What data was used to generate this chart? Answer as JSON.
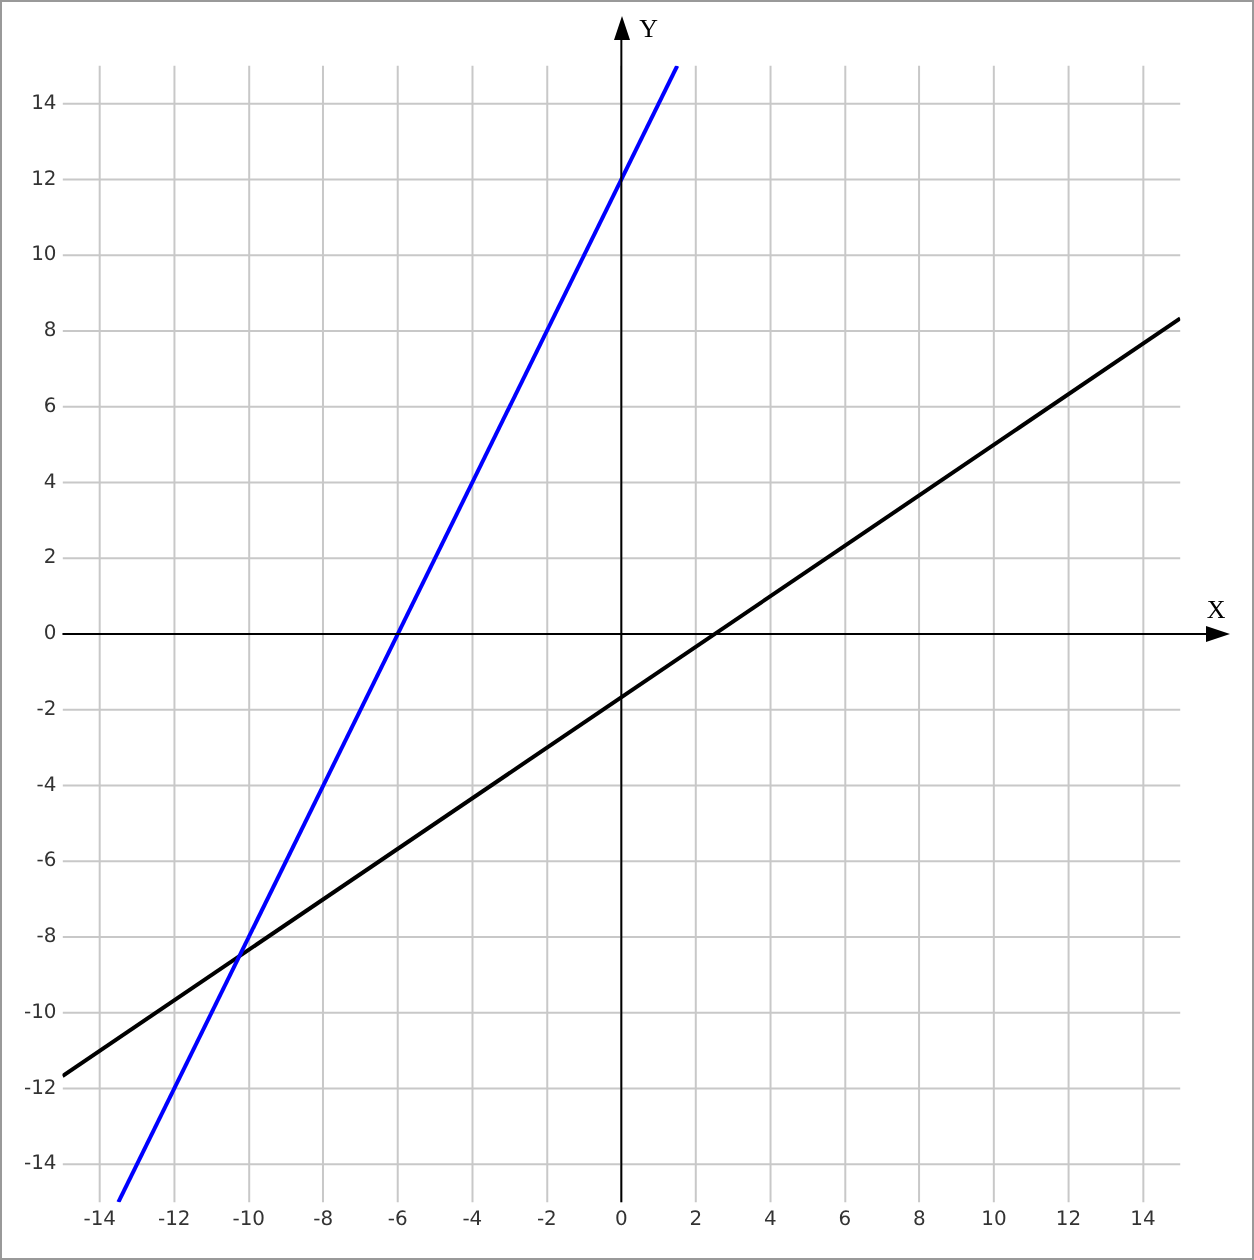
{
  "chart_data": {
    "type": "line",
    "xlabel": "X",
    "ylabel": "Y",
    "xlim": [
      -15,
      15
    ],
    "ylim": [
      -15,
      15
    ],
    "xticks": [
      -14,
      -12,
      -10,
      -8,
      -6,
      -4,
      -2,
      0,
      2,
      4,
      6,
      8,
      10,
      12,
      14
    ],
    "yticks": [
      -14,
      -12,
      -10,
      -8,
      -6,
      -4,
      -2,
      0,
      2,
      4,
      6,
      8,
      10,
      12,
      14
    ],
    "grid": true,
    "marker": "none",
    "series": [
      {
        "color": "#0000ff",
        "x": [
          -13.5,
          1.5
        ],
        "values": [
          -15,
          15
        ]
      },
      {
        "color": "#000000",
        "x": [
          -15,
          15
        ],
        "values": [
          -11.67,
          8.33
        ]
      }
    ]
  }
}
